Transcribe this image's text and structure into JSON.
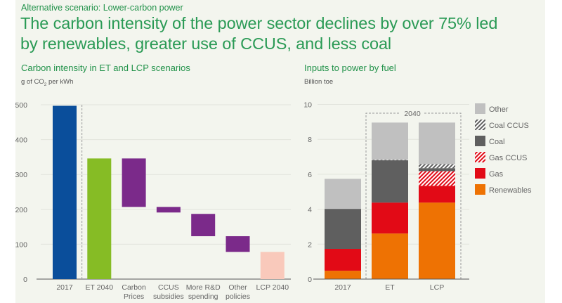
{
  "header": {
    "kicker": "Alternative scenario: Lower-carbon power",
    "headline_line1": "The carbon intensity of the power sector declines by over 75% led",
    "headline_line2": "by renewables, greater use of CCUS, and less coal"
  },
  "colors": {
    "accent_green": "#2a9a55"
  },
  "chart_data": [
    {
      "type": "bar",
      "subtype": "waterfall",
      "title": "Carbon intensity in ET and LCP scenarios",
      "unit_prefix": "g of CO",
      "unit_sub": "2",
      "unit_suffix": " per kWh",
      "ylabel": "g of CO2 per kWh",
      "xlabel": "",
      "ylim": [
        0,
        500
      ],
      "yticks": [
        0,
        100,
        200,
        300,
        400,
        500
      ],
      "grid": true,
      "categories": [
        {
          "line1": "2017",
          "line2": ""
        },
        {
          "line1": "ET 2040",
          "line2": ""
        },
        {
          "line1": "Carbon",
          "line2": "Prices"
        },
        {
          "line1": "CCUS",
          "line2": "subsidies"
        },
        {
          "line1": "More R&D",
          "line2": "spending"
        },
        {
          "line1": "Other",
          "line2": "policies"
        },
        {
          "line1": "LCP 2040",
          "line2": ""
        }
      ],
      "bars": [
        {
          "name": "2017",
          "start": 0,
          "end": 497,
          "color": "#0a4e9b"
        },
        {
          "name": "ET 2040",
          "start": 0,
          "end": 346,
          "color": "#86bc25"
        },
        {
          "name": "Carbon Prices",
          "start": 207,
          "end": 346,
          "color": "#7b2a8a"
        },
        {
          "name": "CCUS subsidies",
          "start": 191,
          "end": 207,
          "color": "#7b2a8a"
        },
        {
          "name": "More R&D spending",
          "start": 123,
          "end": 187,
          "color": "#7b2a8a"
        },
        {
          "name": "Other policies",
          "start": 78,
          "end": 123,
          "color": "#7b2a8a"
        },
        {
          "name": "LCP 2040",
          "start": 0,
          "end": 78,
          "color": "#f9c9bb"
        }
      ],
      "separator_after_category": "2017"
    },
    {
      "type": "bar",
      "subtype": "stacked",
      "title": "Inputs to power by fuel",
      "ylabel": "Billion toe",
      "xlabel": "",
      "ylim": [
        0,
        10
      ],
      "yticks": [
        0,
        2,
        4,
        6,
        8,
        10
      ],
      "grid": true,
      "categories": [
        "2017",
        "ET",
        "LCP"
      ],
      "group_box": {
        "label": "2040",
        "categories": [
          "ET",
          "LCP"
        ]
      },
      "legend_position": "right",
      "series": [
        {
          "name": "Renewables",
          "color": "#ee7203",
          "pattern": "solid",
          "values": [
            0.48,
            2.61,
            4.38
          ]
        },
        {
          "name": "Gas",
          "color": "#e20a16",
          "pattern": "solid",
          "values": [
            1.25,
            1.77,
            0.96
          ]
        },
        {
          "name": "Gas CCUS",
          "color": "#e20a16",
          "pattern": "hatched",
          "values": [
            0,
            0,
            0.84
          ]
        },
        {
          "name": "Coal",
          "color": "#5f5f5f",
          "pattern": "solid",
          "values": [
            2.29,
            2.42,
            0.17
          ]
        },
        {
          "name": "Coal CCUS",
          "color": "#5f5f5f",
          "pattern": "hatched",
          "values": [
            0,
            0.03,
            0.23
          ]
        },
        {
          "name": "Other",
          "color": "#c0c0c0",
          "pattern": "solid",
          "values": [
            1.72,
            2.13,
            2.38
          ]
        }
      ],
      "legend_order": [
        "Other",
        "Coal CCUS",
        "Coal",
        "Gas CCUS",
        "Gas",
        "Renewables"
      ]
    }
  ]
}
